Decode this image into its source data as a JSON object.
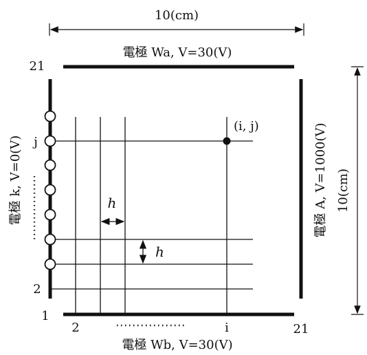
{
  "dimensions": {
    "top_width": "10(cm)",
    "right_height": "10(cm)"
  },
  "electrodes": {
    "top": "電極 Wa,  V=30(V)",
    "bottom": "電極 Wb,  V=30(V)",
    "left": "電極 k,  V=0(V)",
    "right": "電極 A,  V=1000(V)"
  },
  "grid": {
    "spacing_label": "h",
    "point_label": "(i,  j)",
    "x_labels": {
      "x2": "2",
      "xi": "i",
      "x21": "21"
    },
    "y_labels": {
      "y21": "21",
      "yj": "j",
      "y2": "2",
      "y1": "1"
    },
    "dots": "……………"
  },
  "colors": {
    "ink": "#111111",
    "background": "#ffffff"
  }
}
